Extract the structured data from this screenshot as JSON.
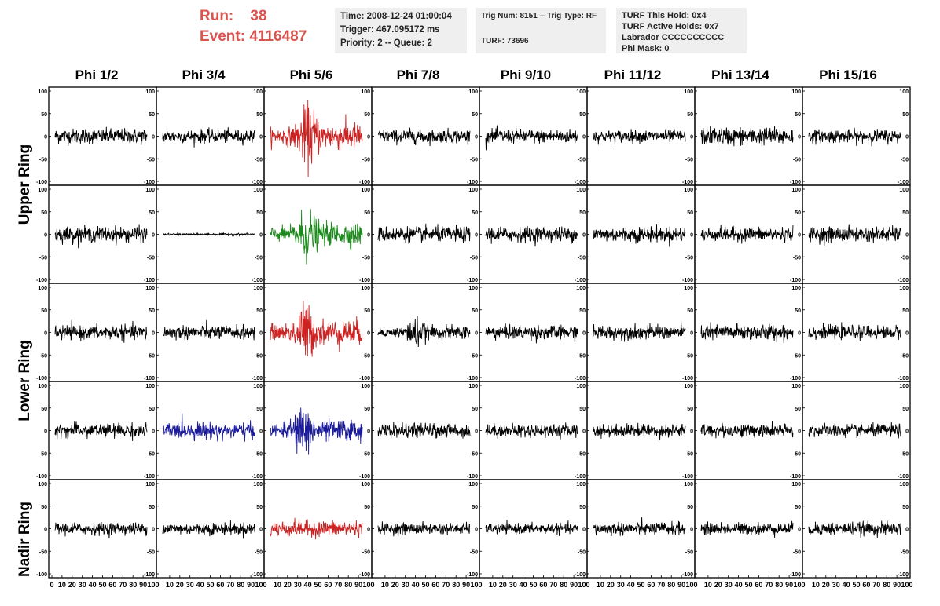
{
  "header": {
    "run_label": "Run:",
    "run_value": "38",
    "event_label": "Event:",
    "event_value": "4116487"
  },
  "info_time": {
    "time": "Time: 2008-12-24 01:00:04",
    "trigger": "Trigger: 467.095172 ms",
    "priority": "Priority: 2 -- Queue: 2"
  },
  "info_trig": {
    "trig": "Trig Num: 8151 -- Trig Type: RF",
    "turf": "TURF: 73696"
  },
  "info_turf": {
    "hold": "TURF This Hold: 0x4",
    "active": "TURF Active Holds: 0x7",
    "labrador": "Labrador CCCCCCCCCC",
    "mask": "Phi Mask: 0"
  },
  "phi_headers": [
    "Phi 1/2",
    "Phi 3/4",
    "Phi 5/6",
    "Phi 7/8",
    "Phi 9/10",
    "Phi 11/12",
    "Phi 13/14",
    "Phi 15/16"
  ],
  "ring_labels": [
    "Upper Ring",
    "Lower Ring",
    "Nadir Ring"
  ],
  "y_ticks": [
    "100",
    "50",
    "0",
    "-50",
    "-100"
  ],
  "x_ticks": [
    "0",
    "10",
    "20",
    "30",
    "40",
    "50",
    "60",
    "70",
    "80",
    "90",
    "100"
  ],
  "colors": {
    "black": "#000000",
    "red": "#cc2222",
    "green": "#1a8a1a",
    "blue": "#1a1a9a",
    "title_red": "#d9534f"
  },
  "panels": {
    "rows": 5,
    "cols": 8,
    "trace_colors": [
      [
        "black",
        "black",
        "red",
        "black",
        "black",
        "black",
        "black",
        "black"
      ],
      [
        "black",
        "black",
        "green",
        "black",
        "black",
        "black",
        "black",
        "black"
      ],
      [
        "black",
        "black",
        "red",
        "black",
        "black",
        "black",
        "black",
        "black"
      ],
      [
        "black",
        "blue",
        "blue",
        "black",
        "black",
        "black",
        "black",
        "black"
      ],
      [
        "black",
        "black",
        "red",
        "black",
        "black",
        "black",
        "black",
        "black"
      ]
    ],
    "amplitude": [
      [
        15,
        13,
        30,
        14,
        14,
        12,
        18,
        13
      ],
      [
        15,
        2,
        25,
        15,
        15,
        15,
        14,
        15
      ],
      [
        14,
        14,
        28,
        15,
        14,
        14,
        16,
        13
      ],
      [
        14,
        16,
        24,
        14,
        13,
        13,
        13,
        13
      ],
      [
        12,
        12,
        16,
        11,
        10,
        13,
        12,
        13
      ]
    ],
    "burst_centers": [
      [
        null,
        null,
        42,
        null,
        null,
        null,
        null,
        null
      ],
      [
        null,
        null,
        40,
        null,
        null,
        null,
        null,
        null
      ],
      [
        null,
        null,
        38,
        40,
        null,
        null,
        null,
        null
      ],
      [
        null,
        null,
        36,
        null,
        null,
        null,
        null,
        null
      ],
      [
        null,
        null,
        null,
        null,
        null,
        null,
        null,
        null
      ]
    ]
  },
  "chart_data": {
    "type": "line",
    "title": "",
    "xlabel": "",
    "ylabel": "",
    "xlim": [
      0,
      100
    ],
    "ylim": [
      -100,
      100
    ],
    "grid": false,
    "rows": [
      "Upper Ring",
      "Upper Ring",
      "Lower Ring",
      "Lower Ring",
      "Nadir Ring"
    ],
    "columns": [
      "Phi 1/2",
      "Phi 3/4",
      "Phi 5/6",
      "Phi 7/8",
      "Phi 9/10",
      "Phi 11/12",
      "Phi 13/14",
      "Phi 15/16"
    ],
    "x_ticks": [
      0,
      10,
      20,
      30,
      40,
      50,
      60,
      70,
      80,
      90,
      100
    ],
    "y_ticks": [
      100,
      50,
      0,
      -50,
      -100
    ]
  }
}
